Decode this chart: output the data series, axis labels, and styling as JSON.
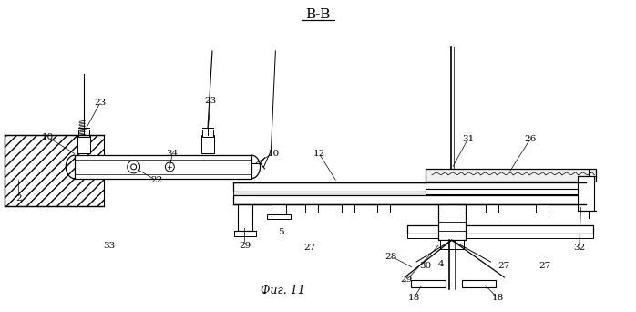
{
  "title": "В-В",
  "caption": "Фиг. 11",
  "bg_color": "#ffffff",
  "line_color": "#000000",
  "figsize": [
    6.98,
    3.42
  ],
  "dpi": 100
}
